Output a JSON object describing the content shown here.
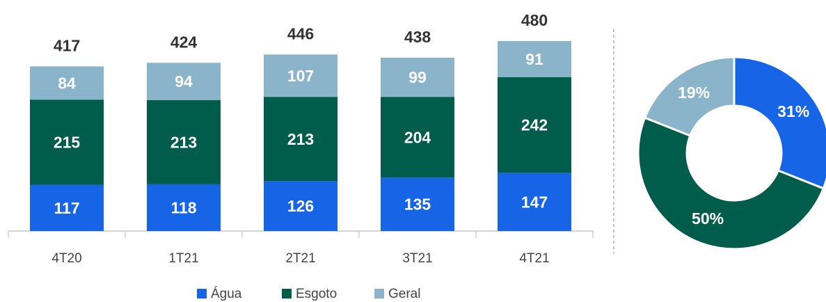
{
  "chart_data": [
    {
      "type": "bar",
      "categories": [
        "4T20",
        "1T21",
        "2T21",
        "3T21",
        "4T21"
      ],
      "series": [
        {
          "name": "Água",
          "color": "#1565e6",
          "values": [
            117,
            118,
            126,
            135,
            147
          ]
        },
        {
          "name": "Esgoto",
          "color": "#005c4b",
          "values": [
            215,
            213,
            213,
            204,
            242
          ]
        },
        {
          "name": "Geral",
          "color": "#8ab4c9",
          "values": [
            84,
            94,
            107,
            99,
            91
          ]
        }
      ],
      "totals": [
        417,
        424,
        446,
        438,
        480
      ],
      "legend": "bottom"
    },
    {
      "type": "pie",
      "values": [
        31,
        50,
        19
      ],
      "value_labels": [
        "31%",
        "50%",
        "19%"
      ],
      "colors": [
        "#1565e6",
        "#005c4b",
        "#8ab4c9"
      ],
      "donut": true
    }
  ]
}
